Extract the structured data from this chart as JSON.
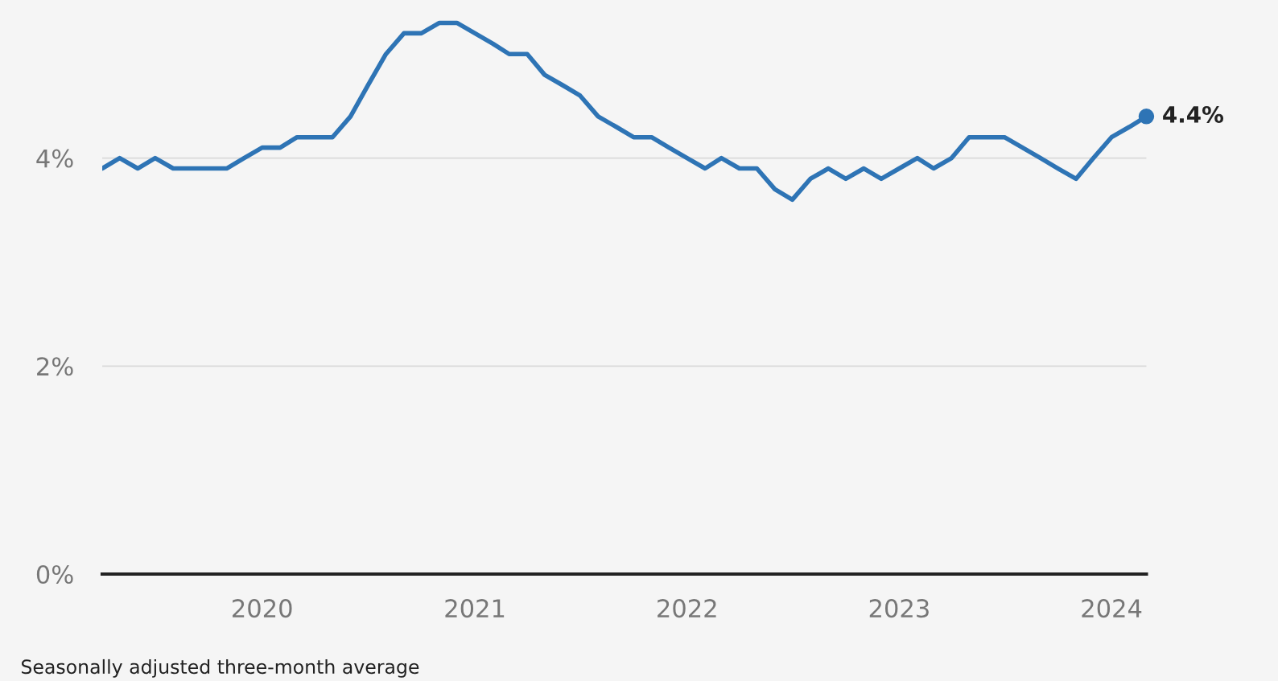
{
  "chart_data": {
    "type": "line",
    "x": [
      "2019-04",
      "2019-05",
      "2019-06",
      "2019-07",
      "2019-08",
      "2019-09",
      "2019-10",
      "2019-11",
      "2019-12",
      "2020-01",
      "2020-02",
      "2020-03",
      "2020-04",
      "2020-05",
      "2020-06",
      "2020-07",
      "2020-08",
      "2020-09",
      "2020-10",
      "2020-11",
      "2020-12",
      "2021-01",
      "2021-02",
      "2021-03",
      "2021-04",
      "2021-05",
      "2021-06",
      "2021-07",
      "2021-08",
      "2021-09",
      "2021-10",
      "2021-11",
      "2021-12",
      "2022-01",
      "2022-02",
      "2022-03",
      "2022-04",
      "2022-05",
      "2022-06",
      "2022-07",
      "2022-08",
      "2022-09",
      "2022-10",
      "2022-11",
      "2022-12",
      "2023-01",
      "2023-02",
      "2023-03",
      "2023-04",
      "2023-05",
      "2023-06",
      "2023-07",
      "2023-08",
      "2023-09",
      "2023-10",
      "2023-11",
      "2023-12",
      "2024-01",
      "2024-02",
      "2024-03"
    ],
    "series": [
      {
        "color": "#2e74b5",
        "values": [
          3.9,
          4.0,
          3.9,
          4.0,
          3.9,
          3.9,
          3.9,
          3.9,
          4.0,
          4.1,
          4.1,
          4.2,
          4.2,
          4.2,
          4.4,
          4.7,
          5.0,
          5.2,
          5.2,
          5.3,
          5.3,
          5.2,
          5.1,
          5.0,
          5.0,
          4.8,
          4.7,
          4.6,
          4.4,
          4.3,
          4.2,
          4.2,
          4.1,
          4.0,
          3.9,
          4.0,
          3.9,
          3.9,
          3.7,
          3.6,
          3.8,
          3.9,
          3.8,
          3.9,
          3.8,
          3.9,
          4.0,
          3.9,
          4.0,
          4.2,
          4.2,
          4.2,
          4.1,
          4.0,
          3.9,
          3.8,
          4.0,
          4.2,
          4.3,
          4.4
        ]
      }
    ],
    "ylim": [
      0,
      5.5
    ],
    "yticks": [
      {
        "value": 0,
        "label": "0%"
      },
      {
        "value": 2,
        "label": "2%"
      },
      {
        "value": 4,
        "label": "4%"
      }
    ],
    "xlim": [
      "2019-04",
      "2024-03"
    ],
    "xticks": [
      "2020",
      "2021",
      "2022",
      "2023",
      "2024"
    ],
    "grid": "y",
    "annotations": [
      {
        "text": "4.4%",
        "x": "2024-03",
        "y": 4.4
      },
      "Seasonally adjusted three-month average"
    ]
  }
}
